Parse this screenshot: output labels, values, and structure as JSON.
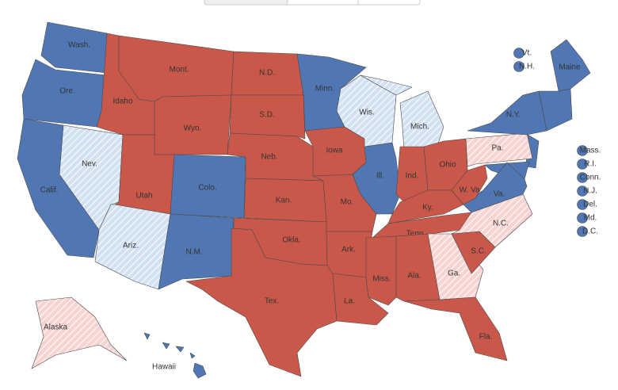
{
  "map": {
    "states": [
      {
        "label": "Wash.",
        "color": "#5077b3",
        "hatched": false
      },
      {
        "label": "Ore.",
        "color": "#5077b3",
        "hatched": false
      },
      {
        "label": "Calif.",
        "color": "#5077b3",
        "hatched": false
      },
      {
        "label": "Nev.",
        "color": "#d3e2f2",
        "hatched": true
      },
      {
        "label": "Idaho",
        "color": "#c9584a",
        "hatched": false
      },
      {
        "label": "Mont.",
        "color": "#c9584a",
        "hatched": false
      },
      {
        "label": "Wyo.",
        "color": "#c9584a",
        "hatched": false
      },
      {
        "label": "Utah",
        "color": "#c9584a",
        "hatched": false
      },
      {
        "label": "Ariz.",
        "color": "#d3e2f2",
        "hatched": true
      },
      {
        "label": "Colo.",
        "color": "#5077b3",
        "hatched": false
      },
      {
        "label": "N.M.",
        "color": "#5077b3",
        "hatched": false
      },
      {
        "label": "N.D.",
        "color": "#c9584a",
        "hatched": false
      },
      {
        "label": "S.D.",
        "color": "#c9584a",
        "hatched": false
      },
      {
        "label": "Neb.",
        "color": "#c9584a",
        "hatched": false
      },
      {
        "label": "Kan.",
        "color": "#c9584a",
        "hatched": false
      },
      {
        "label": "Okla.",
        "color": "#c9584a",
        "hatched": false
      },
      {
        "label": "Tex.",
        "color": "#c9584a",
        "hatched": false
      },
      {
        "label": "Minn.",
        "color": "#5077b3",
        "hatched": false
      },
      {
        "label": "Iowa",
        "color": "#c9584a",
        "hatched": false
      },
      {
        "label": "Mo.",
        "color": "#c9584a",
        "hatched": false
      },
      {
        "label": "Ark.",
        "color": "#c9584a",
        "hatched": false
      },
      {
        "label": "La.",
        "color": "#c9584a",
        "hatched": false
      },
      {
        "label": "Wis.",
        "color": "#d3e2f2",
        "hatched": true
      },
      {
        "label": "Ill.",
        "color": "#5077b3",
        "hatched": false
      },
      {
        "label": "Mich.",
        "color": "#d3e2f2",
        "hatched": true
      },
      {
        "label": "Ind.",
        "color": "#c9584a",
        "hatched": false
      },
      {
        "label": "Ohio",
        "color": "#c9584a",
        "hatched": false
      },
      {
        "label": "Ky.",
        "color": "#c9584a",
        "hatched": false
      },
      {
        "label": "Tenn.",
        "color": "#c9584a",
        "hatched": false
      },
      {
        "label": "Miss.",
        "color": "#c9584a",
        "hatched": false
      },
      {
        "label": "Ala.",
        "color": "#c9584a",
        "hatched": false
      },
      {
        "label": "Ga.",
        "color": "#f7d4d1",
        "hatched": true
      },
      {
        "label": "Fla.",
        "color": "#c9584a",
        "hatched": false
      },
      {
        "label": "S.C.",
        "color": "#c9584a",
        "hatched": false
      },
      {
        "label": "N.C.",
        "color": "#f7d4d1",
        "hatched": true
      },
      {
        "label": "Va.",
        "color": "#5077b3",
        "hatched": false
      },
      {
        "label": "W. Va.",
        "color": "#c9584a",
        "hatched": false
      },
      {
        "label": "Pa.",
        "color": "#f7d4d1",
        "hatched": true
      },
      {
        "label": "N.Y.",
        "color": "#5077b3",
        "hatched": false
      },
      {
        "label": "Maine",
        "color": "#5077b3",
        "hatched": false
      },
      {
        "label": "Alaska",
        "color": "#f7d4d1",
        "hatched": true
      },
      {
        "label": "Hawaii",
        "color": "#5077b3",
        "hatched": false
      }
    ],
    "small_states": [
      {
        "label": "Vt.",
        "color": "#5077b3"
      },
      {
        "label": "N.H.",
        "color": "#5077b3"
      },
      {
        "label": "Mass.",
        "color": "#5077b3"
      },
      {
        "label": "R.I.",
        "color": "#5077b3"
      },
      {
        "label": "Conn.",
        "color": "#5077b3"
      },
      {
        "label": "N.J.",
        "color": "#5077b3"
      },
      {
        "label": "Del.",
        "color": "#5077b3"
      },
      {
        "label": "Md.",
        "color": "#5077b3"
      },
      {
        "label": "D.C.",
        "color": "#5077b3"
      }
    ]
  }
}
